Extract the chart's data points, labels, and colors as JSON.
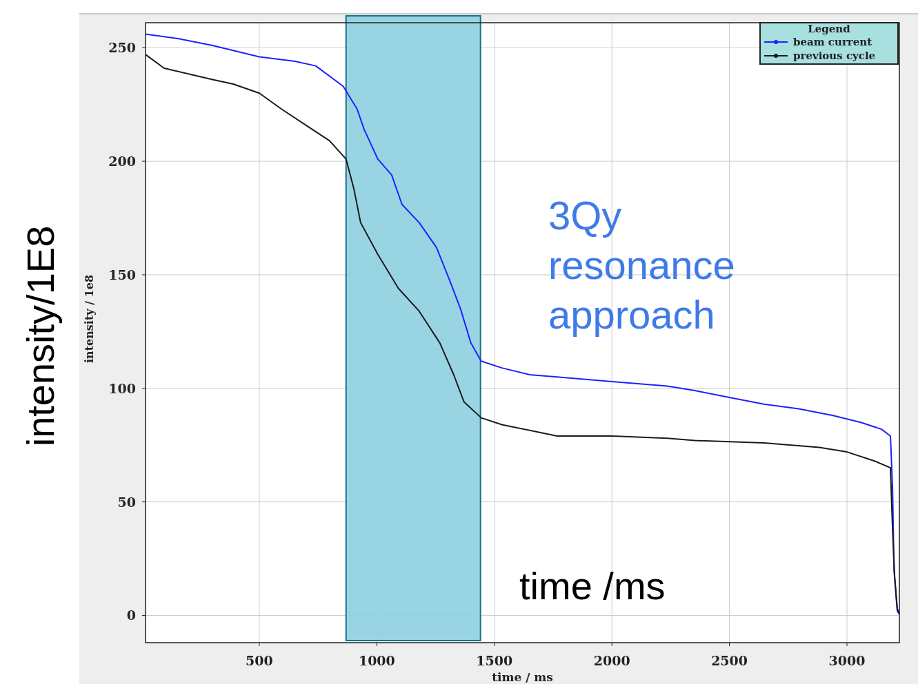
{
  "chart_data": {
    "type": "line",
    "xlabel": "time / ms",
    "ylabel": "intensity / 1e8",
    "legend_title": "Legend",
    "legend": "top right",
    "grid": true,
    "marker": "none",
    "line_style": "solid",
    "xlim": [
      16,
      3223
    ],
    "ylim": [
      -12,
      261
    ],
    "xticks": [
      500,
      1000,
      1500,
      2000,
      2500,
      3000
    ],
    "yticks": [
      0,
      50,
      100,
      150,
      200,
      250
    ],
    "series": [
      {
        "name": "beam current",
        "color": "#2020ff",
        "x": [
          16,
          154,
          301,
          500,
          652,
          740,
          857,
          916,
          946,
          1004,
          1063,
          1107,
          1180,
          1254,
          1312,
          1356,
          1400,
          1444,
          1532,
          1650,
          1767,
          2001,
          2236,
          2353,
          2500,
          2647,
          2795,
          2941,
          3059,
          3147,
          3185,
          3194,
          3200,
          3214,
          3223
        ],
        "values": [
          256,
          254,
          251,
          246,
          244,
          242,
          233,
          223,
          214,
          201,
          194,
          181,
          173,
          162,
          147,
          135,
          120,
          112,
          109,
          106,
          105,
          103,
          101,
          99,
          96,
          93,
          91,
          88,
          85,
          82,
          79,
          56,
          20,
          2,
          0.6
        ]
      },
      {
        "name": "previous cycle",
        "color": "#1a1a1a",
        "x": [
          16,
          95,
          301,
          389,
          500,
          594,
          711,
          799,
          869,
          902,
          931,
          1004,
          1092,
          1180,
          1268,
          1327,
          1371,
          1444,
          1532,
          1767,
          2001,
          2236,
          2353,
          2647,
          2882,
          3000,
          3117,
          3185,
          3194,
          3203,
          3214,
          3223
        ],
        "values": [
          247,
          241,
          236,
          234,
          230,
          223,
          215,
          209,
          201,
          188,
          173,
          159,
          144,
          134,
          120,
          106,
          94,
          87,
          84,
          79,
          79,
          78,
          77,
          76,
          74,
          72,
          68,
          65,
          38,
          17,
          3,
          0.6
        ]
      }
    ],
    "bands": [
      {
        "axis": "x",
        "from": 869,
        "to": 1441,
        "color": "#8ecfe0"
      }
    ],
    "annotations": [
      "3Qy resonance approach",
      "time /ms",
      "intensity/1E8"
    ]
  }
}
